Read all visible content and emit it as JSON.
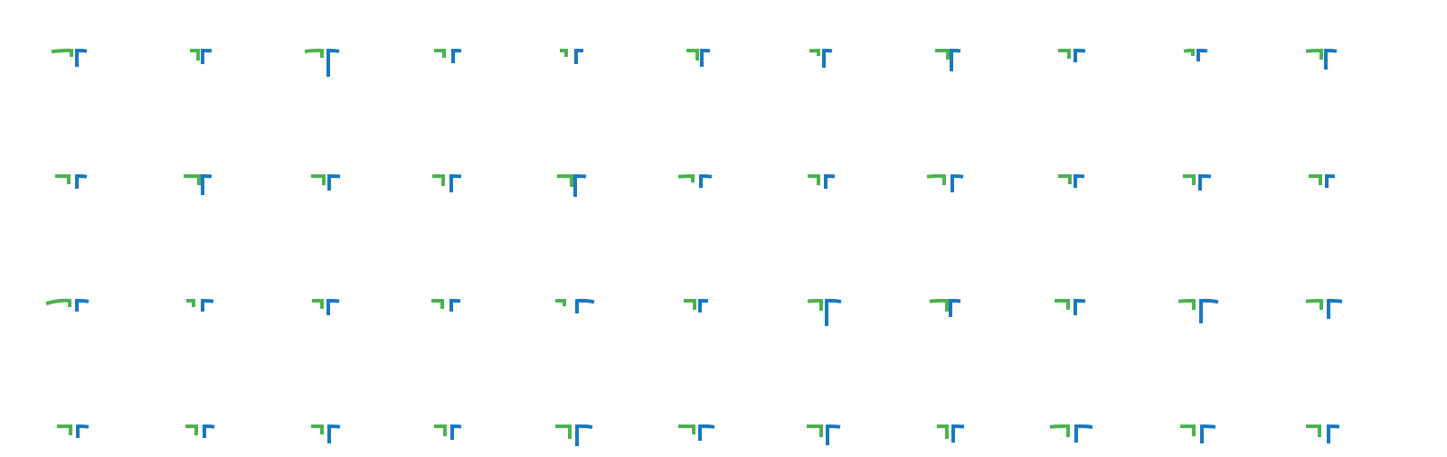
{
  "colors": {
    "background": "#ffffff",
    "green": "#4cb24f",
    "blue": "#1878c0"
  },
  "icon": "green-left-hook-and-blue-right-bracket-icon",
  "rows": [
    [
      {
        "g": [
          22,
          4,
          7,
          0.15
        ],
        "b": [
          11,
          18,
          10,
          0.2
        ]
      },
      {
        "g": [
          9,
          3,
          11,
          0.0
        ],
        "b": [
          10,
          15,
          10,
          0.1
        ]
      },
      {
        "g": [
          19,
          5,
          8,
          0.15
        ],
        "b": [
          12,
          29,
          10,
          0.25
        ]
      },
      {
        "g": [
          11,
          6,
          8,
          0.0
        ],
        "b": [
          9,
          14,
          12,
          0.1
        ]
      },
      {
        "g": [
          7,
          8,
          7,
          0.0
        ],
        "b": [
          8,
          15,
          11,
          0.0
        ]
      },
      {
        "g": [
          12,
          2,
          11,
          0.0
        ],
        "b": [
          9,
          18,
          11,
          0.1
        ]
      },
      {
        "g": [
          10,
          6,
          6,
          0.1
        ],
        "b": [
          9,
          19,
          8,
          0.15
        ]
      },
      {
        "g": [
          14,
          2,
          10,
          0.0
        ],
        "b": [
          10,
          23,
          10,
          0.15
        ]
      },
      {
        "g": [
          12,
          5,
          9,
          0.0
        ],
        "b": [
          11,
          13,
          10,
          0.1
        ]
      },
      {
        "g": [
          10,
          6,
          6,
          0.2
        ],
        "b": [
          10,
          12,
          8,
          0.15
        ]
      },
      {
        "g": [
          17,
          4,
          10,
          0.1
        ],
        "b": [
          12,
          21,
          9,
          0.2
        ]
      }
    ],
    [
      {
        "g": [
          15,
          7,
          9,
          0.0
        ],
        "b": [
          11,
          14,
          10,
          0.2
        ]
      },
      {
        "g": [
          17,
          2,
          10,
          0.0
        ],
        "b": [
          10,
          21,
          10,
          0.1
        ]
      },
      {
        "g": [
          14,
          3,
          10,
          0.0
        ],
        "b": [
          12,
          16,
          11,
          0.1
        ]
      },
      {
        "g": [
          12,
          7,
          11,
          0.0
        ],
        "b": [
          11,
          18,
          10,
          0.1
        ]
      },
      {
        "g": [
          16,
          2,
          12,
          0.0
        ],
        "b": [
          12,
          23,
          10,
          0.15
        ]
      },
      {
        "g": [
          16,
          7,
          7,
          0.1
        ],
        "b": [
          12,
          13,
          10,
          0.2
        ]
      },
      {
        "g": [
          12,
          6,
          10,
          0.0
        ],
        "b": [
          10,
          14,
          10,
          0.1
        ]
      },
      {
        "g": [
          19,
          6,
          10,
          0.1
        ],
        "b": [
          12,
          18,
          11,
          0.2
        ]
      },
      {
        "g": [
          13,
          4,
          9,
          0.0
        ],
        "b": [
          10,
          13,
          10,
          0.1
        ]
      },
      {
        "g": [
          12,
          5,
          10,
          0.0
        ],
        "b": [
          12,
          16,
          10,
          0.1
        ]
      },
      {
        "g": [
          13,
          5,
          10,
          0.0
        ],
        "b": [
          9,
          13,
          10,
          0.1
        ]
      }
    ],
    [
      {
        "g": [
          26,
          6,
          7,
          0.35
        ],
        "b": [
          13,
          12,
          10,
          0.2
        ]
      },
      {
        "g": [
          8,
          8,
          7,
          0.0
        ],
        "b": [
          12,
          12,
          10,
          0.2
        ]
      },
      {
        "g": [
          11,
          5,
          9,
          0.0
        ],
        "b": [
          12,
          16,
          10,
          0.15
        ]
      },
      {
        "g": [
          12,
          8,
          9,
          0.0
        ],
        "b": [
          10,
          12,
          10,
          0.1
        ]
      },
      {
        "g": [
          10,
          10,
          6,
          0.0
        ],
        "b": [
          19,
          14,
          12,
          0.25
        ]
      },
      {
        "g": [
          12,
          5,
          10,
          0.0
        ],
        "b": [
          9,
          13,
          9,
          0.1
        ]
      },
      {
        "g": [
          15,
          3,
          11,
          0.1
        ],
        "b": [
          16,
          28,
          11,
          0.25
        ]
      },
      {
        "g": [
          19,
          3,
          12,
          0.1
        ],
        "b": [
          11,
          18,
          9,
          0.15
        ]
      },
      {
        "g": [
          15,
          6,
          10,
          0.0
        ],
        "b": [
          11,
          16,
          10,
          0.15
        ]
      },
      {
        "g": [
          17,
          5,
          10,
          0.1
        ],
        "b": [
          19,
          25,
          11,
          0.25
        ]
      },
      {
        "g": [
          17,
          4,
          10,
          0.1
        ],
        "b": [
          15,
          20,
          12,
          0.2
        ]
      }
    ],
    [
      {
        "g": [
          15,
          5,
          10,
          0.0
        ],
        "b": [
          12,
          13,
          11,
          0.2
        ]
      },
      {
        "g": [
          12,
          5,
          10,
          0.0
        ],
        "b": [
          11,
          13,
          12,
          0.2
        ]
      },
      {
        "g": [
          12,
          5,
          9,
          0.0
        ],
        "b": [
          12,
          19,
          11,
          0.2
        ]
      },
      {
        "g": [
          12,
          5,
          11,
          0.0
        ],
        "b": [
          10,
          15,
          11,
          0.15
        ]
      },
      {
        "g": [
          16,
          4,
          14,
          0.0
        ],
        "b": [
          17,
          22,
          12,
          0.2
        ]
      },
      {
        "g": [
          17,
          6,
          9,
          0.0
        ],
        "b": [
          16,
          16,
          9,
          0.2
        ]
      },
      {
        "g": [
          16,
          3,
          12,
          0.0
        ],
        "b": [
          14,
          21,
          12,
          0.2
        ]
      },
      {
        "g": [
          11,
          3,
          14,
          0.0
        ],
        "b": [
          12,
          18,
          12,
          0.1
        ]
      },
      {
        "g": [
          20,
          6,
          12,
          0.1
        ],
        "b": [
          18,
          18,
          11,
          0.2
        ]
      },
      {
        "g": [
          15,
          5,
          11,
          0.0
        ],
        "b": [
          15,
          19,
          12,
          0.2
        ]
      },
      {
        "g": [
          15,
          6,
          12,
          0.0
        ],
        "b": [
          12,
          19,
          12,
          0.15
        ]
      }
    ]
  ]
}
